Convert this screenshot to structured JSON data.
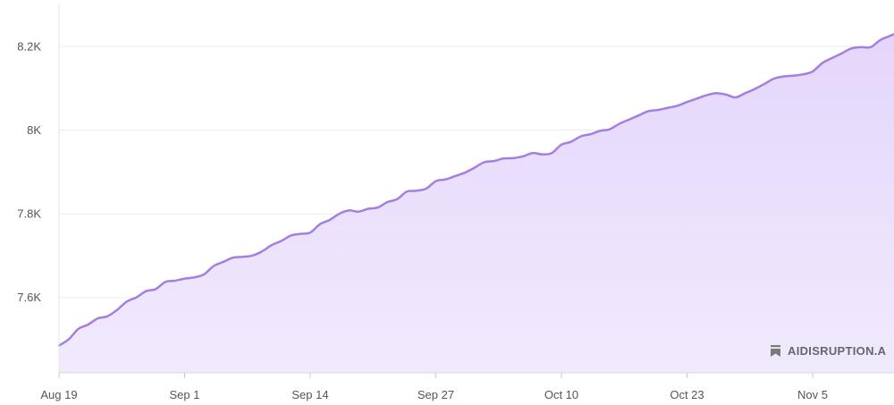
{
  "watermark": {
    "text": "AIDISRUPTION.A",
    "icon": "bookmark-icon"
  },
  "chart_data": {
    "type": "area",
    "x_ticks": [
      "Aug 19",
      "Sep 1",
      "Sep 14",
      "Sep 27",
      "Oct 10",
      "Oct 23",
      "Nov 5"
    ],
    "y_ticks": [
      {
        "value": 7600,
        "label": "7.6K"
      },
      {
        "value": 7800,
        "label": "7.8K"
      },
      {
        "value": 8000,
        "label": "8K"
      },
      {
        "value": 8200,
        "label": "8.2K"
      }
    ],
    "ylim": [
      7420,
      8300
    ],
    "x_domain_days": [
      0,
      87.5
    ],
    "series": [
      {
        "color": "#a47fe0",
        "fill": "#ece2fd",
        "x_days": [
          0,
          1,
          2,
          3,
          4,
          5,
          6,
          7,
          8,
          9,
          10,
          11,
          12,
          13,
          14,
          15,
          16,
          17,
          18,
          19,
          20,
          21,
          22,
          23,
          24,
          25,
          26,
          27,
          28,
          29,
          30,
          31,
          32,
          33,
          34,
          35,
          36,
          37,
          38,
          39,
          40,
          41,
          42,
          43,
          44,
          45,
          46,
          47,
          48,
          49,
          50,
          51,
          52,
          53,
          54,
          55,
          56,
          57,
          58,
          59,
          60,
          61,
          62,
          63,
          64,
          65,
          66,
          67,
          68,
          69,
          70,
          71,
          72,
          73,
          74,
          75,
          76,
          77,
          78,
          79,
          80,
          81,
          82,
          83,
          84,
          85,
          86,
          87,
          87.5
        ],
        "values": [
          7485,
          7500,
          7525,
          7535,
          7550,
          7555,
          7570,
          7590,
          7600,
          7615,
          7620,
          7637,
          7640,
          7645,
          7648,
          7655,
          7675,
          7685,
          7695,
          7697,
          7700,
          7710,
          7725,
          7735,
          7748,
          7752,
          7755,
          7775,
          7785,
          7800,
          7808,
          7805,
          7812,
          7815,
          7828,
          7835,
          7853,
          7855,
          7860,
          7878,
          7882,
          7890,
          7898,
          7910,
          7923,
          7926,
          7932,
          7933,
          7937,
          7945,
          7942,
          7945,
          7965,
          7972,
          7985,
          7990,
          7998,
          8002,
          8015,
          8025,
          8035,
          8045,
          8048,
          8053,
          8058,
          8067,
          8075,
          8083,
          8088,
          8085,
          8078,
          8088,
          8098,
          8110,
          8123,
          8128,
          8130,
          8133,
          8140,
          8160,
          8172,
          8183,
          8195,
          8198,
          8198,
          8215,
          8225,
          8235,
          8240
        ]
      }
    ]
  }
}
